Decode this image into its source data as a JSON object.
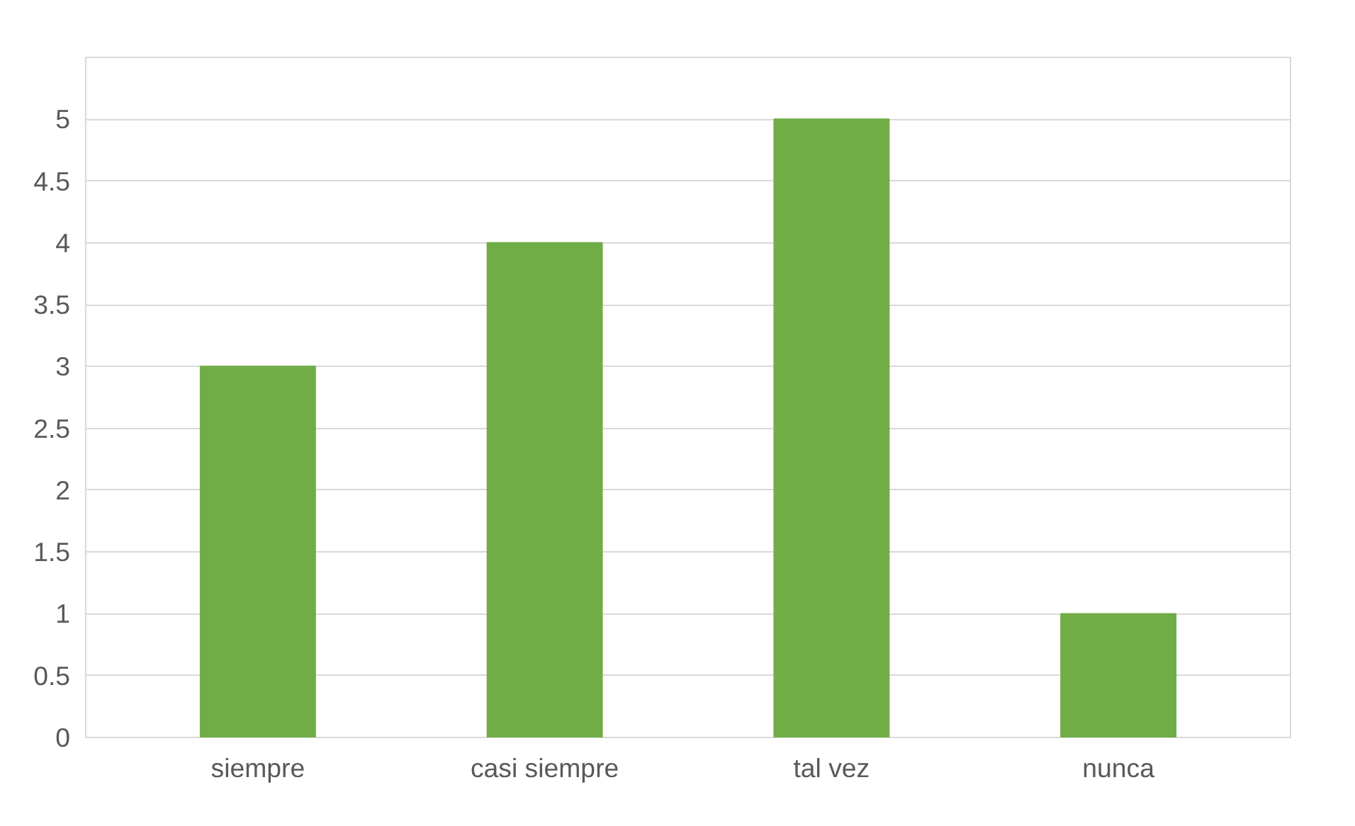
{
  "chart_data": {
    "type": "bar",
    "categories": [
      "siempre",
      "casi siempre",
      "tal vez",
      "nunca"
    ],
    "values": [
      3,
      4,
      5,
      1
    ],
    "color": "#70ad47",
    "ylim": [
      0,
      5.5
    ],
    "yticks": [
      0,
      0.5,
      1,
      1.5,
      2,
      2.5,
      3,
      3.5,
      4,
      4.5,
      5
    ],
    "grid": "y"
  }
}
